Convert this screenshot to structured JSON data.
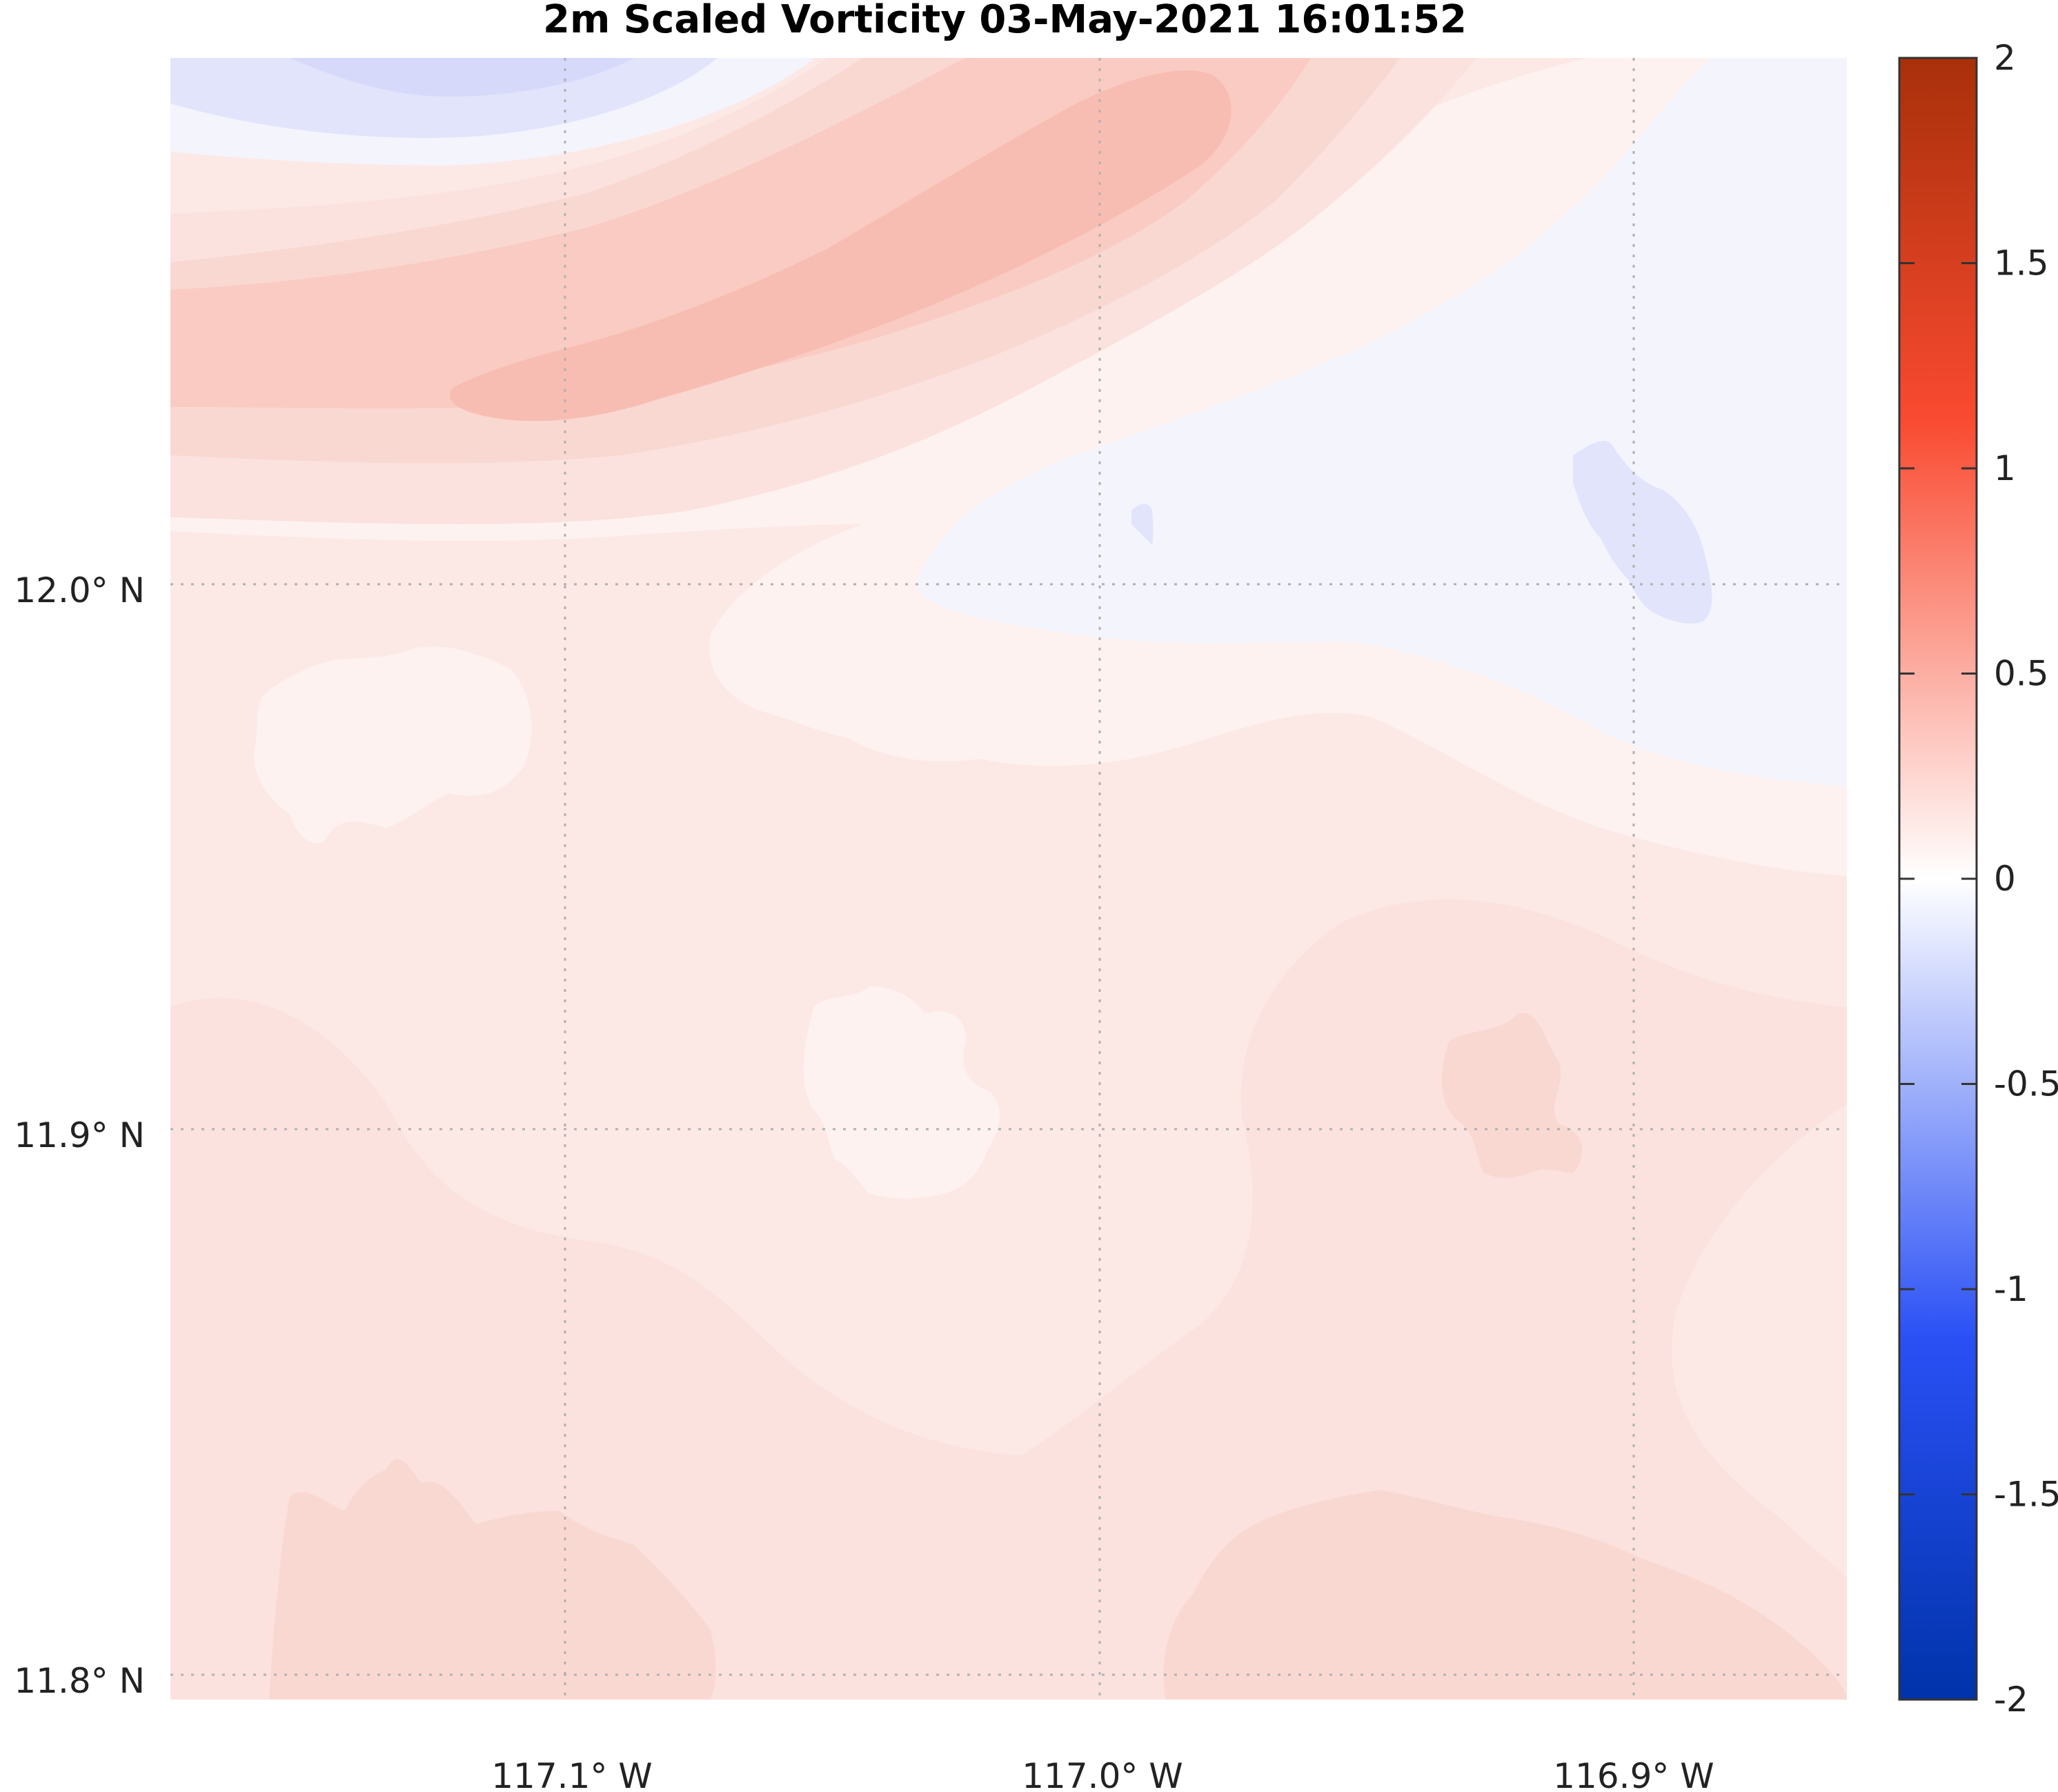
{
  "title": "2m Scaled Vorticity  03-May-2021 16:01:52",
  "map": {
    "latitude_labels": [
      "12.0° N",
      "11.9° N",
      "11.8° N"
    ],
    "longitude_labels": [
      "117.1° W",
      "117.0° W",
      "116.9° W"
    ],
    "gridlines": "dotted"
  },
  "colorbar": {
    "tick_labels": [
      "2",
      "1.5",
      "1",
      "0.5",
      "0",
      "-0.5",
      "-1",
      "-1.5",
      "-2"
    ],
    "range": [
      -2,
      2
    ],
    "colormap": "blue-white-red",
    "colors": {
      "min": "#0033aa",
      "neg": "#2a50f5",
      "zero": "#ffffff",
      "pos": "#f94a30",
      "max": "#a8300a"
    }
  },
  "field_colors": {
    "neg_weak": "#f4f4fd",
    "neg_mid": "#e2e4fb",
    "neg_strong": "#d6d9fa",
    "pos_faint": "#fdf2f0",
    "pos_light": "#fce9e6",
    "pos_low": "#fbe2de",
    "pos_mid": "#fad8d2",
    "pos_high": "#f9cbc2",
    "pos_peak": "#f8bdb2"
  }
}
